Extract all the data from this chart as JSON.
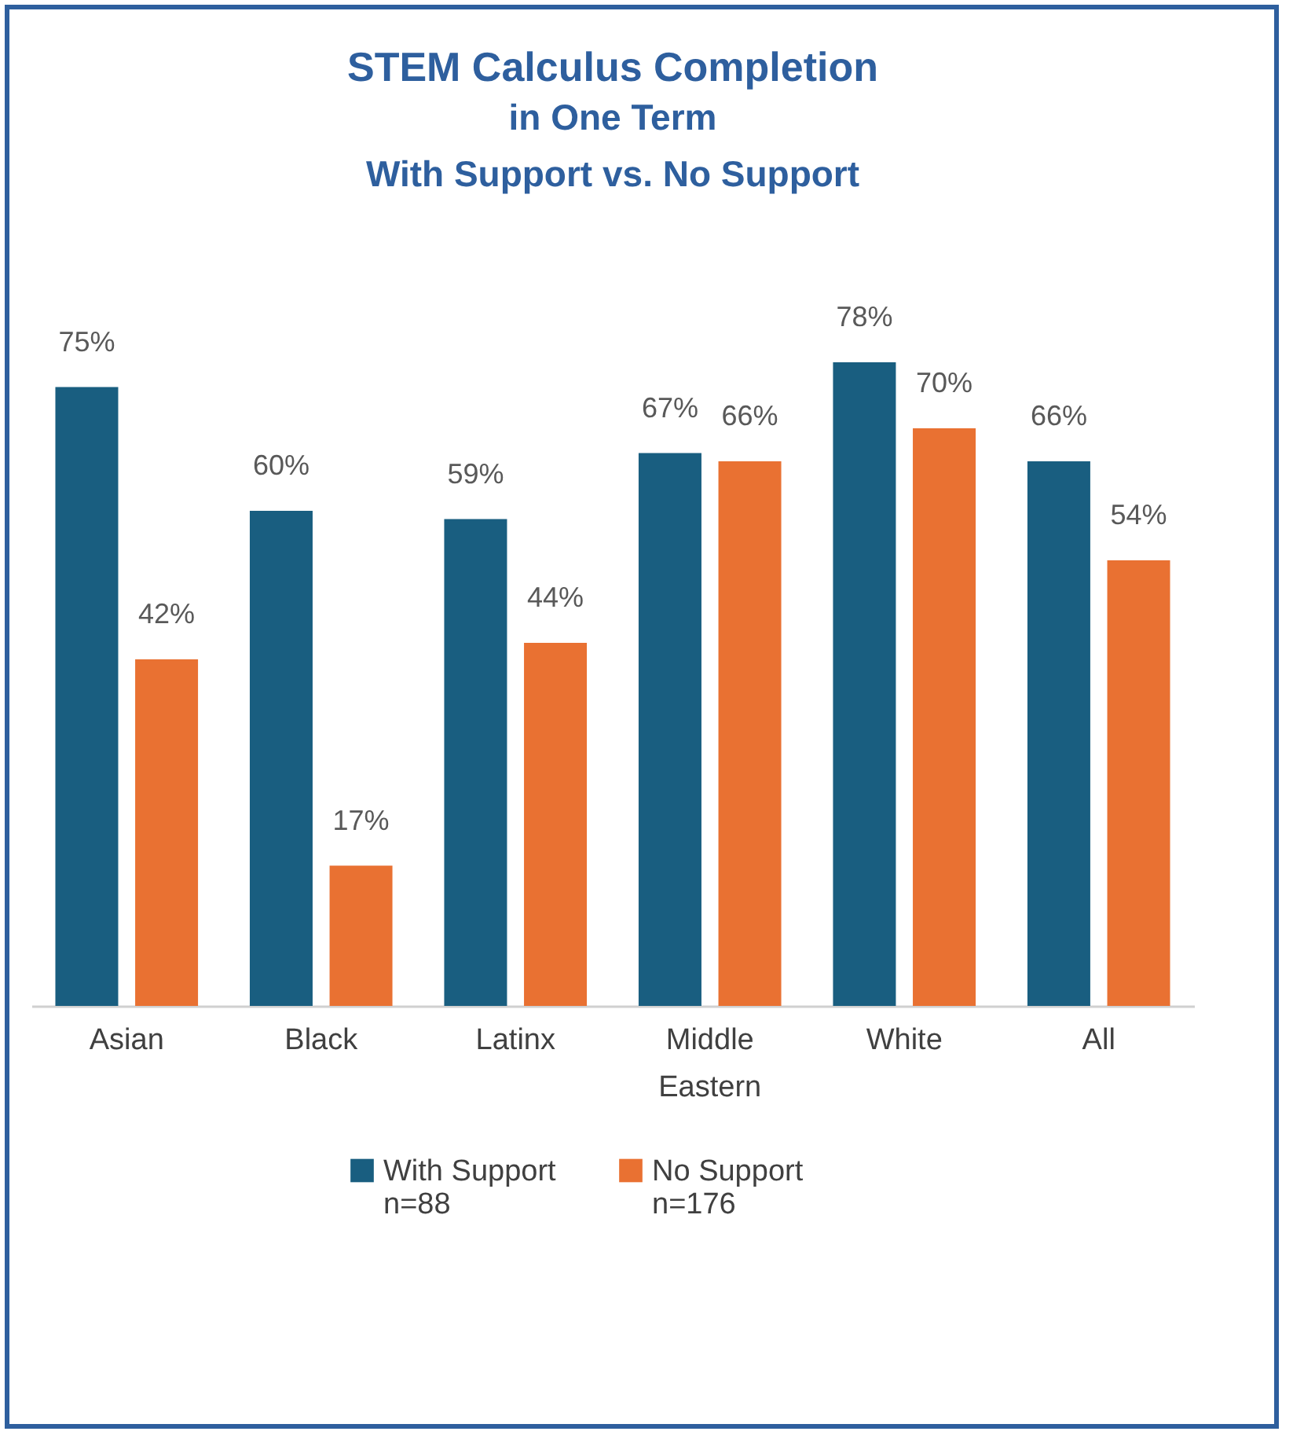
{
  "chart_data": {
    "type": "bar",
    "title": "STEM Calculus Completion",
    "subtitle": "in One Term\nWith Support vs. No Support",
    "categories": [
      "Asian",
      "Black",
      "Latinx",
      "Middle Eastern",
      "White",
      "All"
    ],
    "series": [
      {
        "name": "With Support\nn=88",
        "color": "#195e80",
        "values": [
          75,
          60,
          59,
          67,
          78,
          66
        ],
        "value_labels": [
          "75%",
          "60%",
          "59%",
          "67%",
          "78%",
          "66%"
        ]
      },
      {
        "name": "No Support\nn=176",
        "color": "#e97132",
        "values": [
          42,
          17,
          44,
          66,
          70,
          54
        ],
        "value_labels": [
          "42%",
          "17%",
          "44%",
          "66%",
          "70%",
          "54%"
        ]
      }
    ],
    "legend": "bottom"
  }
}
